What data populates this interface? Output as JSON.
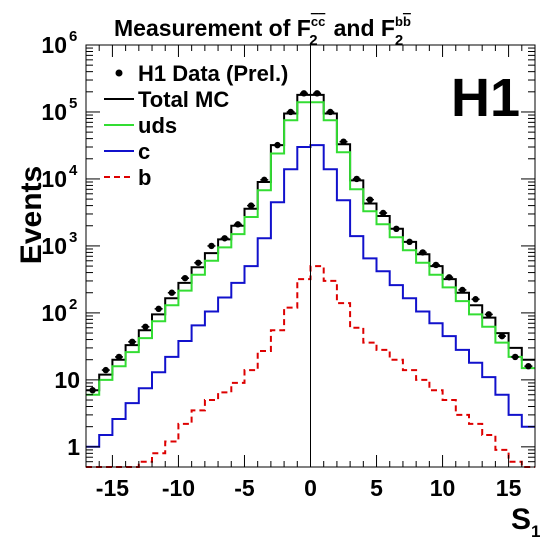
{
  "chart_data": {
    "type": "histogram",
    "title_parts": {
      "main": "Measurement of F",
      "sub1": "2",
      "sup1": "c",
      "sup1b": "c",
      "mid": "and F",
      "sub2": "2",
      "sup2": "b",
      "sup2b": "b"
    },
    "ylabel": "Events",
    "xlabel_parts": {
      "main": "S",
      "sub": "1"
    },
    "logo": "H1",
    "yscale": "log",
    "xlim": [
      -17,
      17
    ],
    "ylim": [
      0.5,
      1000000
    ],
    "x_ticks": [
      "-15",
      "-10",
      "-5",
      "0",
      "5",
      "10",
      "15"
    ],
    "x_tick_values": [
      -15,
      -10,
      -5,
      0,
      5,
      10,
      15
    ],
    "y_ticks": [
      {
        "base": "1",
        "exp": ""
      },
      {
        "base": "10",
        "exp": ""
      },
      {
        "base": "10",
        "exp": "2"
      },
      {
        "base": "10",
        "exp": "3"
      },
      {
        "base": "10",
        "exp": "4"
      },
      {
        "base": "10",
        "exp": "5"
      },
      {
        "base": "10",
        "exp": "6"
      }
    ],
    "y_tick_values": [
      1,
      10,
      100,
      1000,
      10000,
      100000,
      1000000
    ],
    "legend_position": "top-left",
    "bin_edges": [
      -17,
      -16,
      -15,
      -14,
      -13,
      -12,
      -11,
      -10,
      -9,
      -8,
      -7,
      -6,
      -5,
      -4,
      -3,
      -2,
      -1,
      0,
      1,
      2,
      3,
      4,
      5,
      6,
      7,
      8,
      9,
      10,
      11,
      12,
      13,
      14,
      15,
      16,
      17
    ],
    "series": [
      {
        "name": "H1 Data (Prel.)",
        "style": "points",
        "color": "#000000",
        "x": [
          -16.5,
          -15.5,
          -14.5,
          -13.5,
          -12.5,
          -11.5,
          -10.5,
          -9.5,
          -8.5,
          -7.5,
          -6.5,
          -5.5,
          -4.5,
          -3.5,
          -2.5,
          -1.5,
          -0.5,
          0.5,
          1.5,
          2.5,
          3.5,
          4.5,
          5.5,
          6.5,
          7.5,
          8.5,
          9.5,
          10.5,
          11.5,
          12.5,
          13.5,
          14.5,
          15.5,
          16.5
        ],
        "values": [
          7,
          14,
          22,
          37,
          62,
          115,
          200,
          330,
          560,
          1000,
          1300,
          2100,
          4000,
          9700,
          32000,
          100000,
          190000,
          190000,
          100000,
          36000,
          10000,
          4900,
          3100,
          1800,
          1150,
          800,
          520,
          340,
          220,
          160,
          95,
          45,
          22,
          16
        ]
      },
      {
        "name": "Total MC",
        "style": "step",
        "color": "#000000",
        "dash": "",
        "values": [
          7,
          12,
          20,
          33,
          55,
          95,
          165,
          280,
          480,
          780,
          1250,
          2000,
          3600,
          9000,
          32000,
          95000,
          180000,
          180000,
          95000,
          33000,
          9500,
          4300,
          2800,
          1800,
          1150,
          750,
          500,
          320,
          200,
          130,
          85,
          50,
          30,
          20
        ]
      },
      {
        "name": "uds",
        "style": "step",
        "color": "#33dd33",
        "dash": "",
        "values": [
          6,
          10,
          16,
          26,
          42,
          75,
          130,
          215,
          370,
          600,
          950,
          1500,
          2700,
          6800,
          24000,
          75000,
          140000,
          140000,
          75000,
          25000,
          7000,
          3300,
          2100,
          1350,
          860,
          560,
          370,
          240,
          150,
          95,
          62,
          36,
          22,
          15
        ]
      },
      {
        "name": "c",
        "style": "step",
        "color": "#1111cc",
        "dash": "",
        "values": [
          1,
          1.5,
          2.6,
          4.5,
          7.5,
          13,
          22,
          38,
          65,
          105,
          170,
          280,
          500,
          1300,
          4500,
          14000,
          30000,
          32000,
          14000,
          4800,
          1400,
          650,
          420,
          260,
          165,
          105,
          70,
          45,
          28,
          18,
          11,
          6,
          3,
          2
        ]
      },
      {
        "name": "b",
        "style": "step",
        "color": "#dd0000",
        "dash": "6 4",
        "values": [
          0.5,
          0.5,
          0.5,
          0.5,
          0.6,
          0.8,
          1.2,
          2.2,
          3.5,
          5,
          6.5,
          9,
          14,
          27,
          55,
          120,
          320,
          500,
          300,
          140,
          60,
          36,
          28,
          20,
          14,
          10,
          7,
          5,
          3,
          2.2,
          1.5,
          0.9,
          0.6,
          0.5
        ]
      }
    ]
  }
}
